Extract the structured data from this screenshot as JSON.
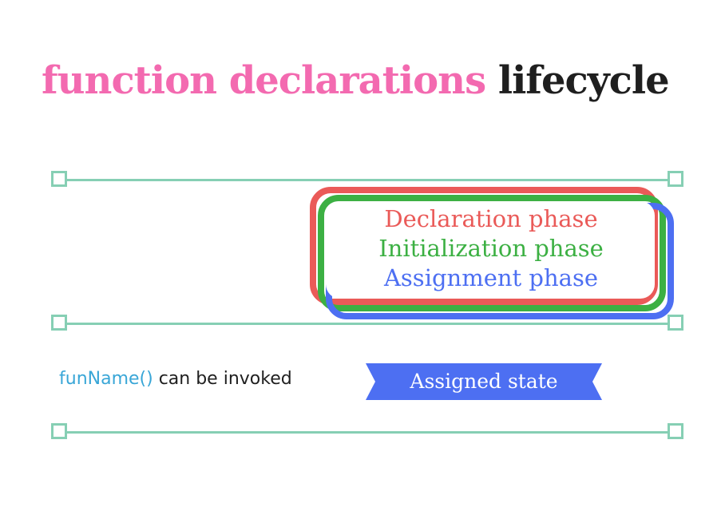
{
  "title": {
    "highlight": "function declarations",
    "rest": "lifecycle"
  },
  "phases": {
    "declaration": "Declaration phase",
    "initialization": "Initialization phase",
    "assignment": "Assignment phase"
  },
  "invoke": {
    "function_name": "funName()",
    "text": "can be invoked"
  },
  "state_label": "Assigned state",
  "colors": {
    "title_accent": "#f36ab0",
    "declaration": "#ea5a58",
    "initialization": "#3cb043",
    "assignment": "#4d6ff2",
    "timeline": "#86cfb4",
    "function_name": "#39a6d7"
  }
}
